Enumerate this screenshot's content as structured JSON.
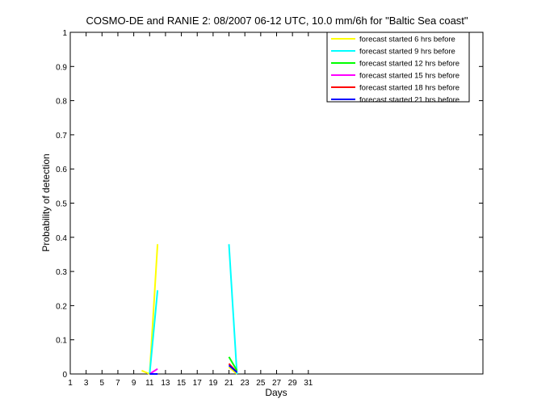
{
  "chart_data": {
    "type": "line",
    "title": "COSMO-DE and RANIE 2: 08/2007 06-12 UTC, 10.0 mm/6h for \"Baltic Sea coast\"",
    "xlabel": "Days",
    "ylabel": "Probability of detection",
    "xlim": [
      1,
      53
    ],
    "ylim": [
      0,
      1
    ],
    "xticks": [
      1,
      3,
      5,
      7,
      9,
      11,
      13,
      15,
      17,
      19,
      21,
      23,
      25,
      27,
      29,
      31
    ],
    "xtick_labels": [
      "1",
      "3",
      "5",
      "7",
      "9",
      "11",
      "13",
      "15",
      "17",
      "19",
      "21",
      "23",
      "25",
      "27",
      "29",
      "31"
    ],
    "yticks": [
      0,
      0.1,
      0.2,
      0.3,
      0.4,
      0.5,
      0.6,
      0.7,
      0.8,
      0.9,
      1
    ],
    "ytick_labels": [
      "0",
      "0.1",
      "0.2",
      "0.3",
      "0.4",
      "0.5",
      "0.6",
      "0.7",
      "0.8",
      "0.9",
      "1"
    ],
    "grid": false,
    "legend_position": "top-right",
    "series": [
      {
        "name": "forecast started 6 hrs before",
        "color": "#ffff00",
        "segments": [
          [
            [
              10,
              0.01
            ],
            [
              11,
              0.0
            ],
            [
              12,
              0.38
            ]
          ],
          [
            [
              21,
              0.02
            ],
            [
              22,
              0.0
            ]
          ]
        ]
      },
      {
        "name": "forecast started 9 hrs before",
        "color": "#00ffff",
        "segments": [
          [
            [
              11,
              0.0
            ],
            [
              12,
              0.245
            ]
          ],
          [
            [
              21,
              0.38
            ],
            [
              22,
              0.0
            ]
          ]
        ]
      },
      {
        "name": "forecast started 12 hrs before",
        "color": "#00ff00",
        "segments": [
          [
            [
              21,
              0.05
            ],
            [
              22,
              0.01
            ]
          ]
        ]
      },
      {
        "name": "forecast started 15 hrs before",
        "color": "#ff00ff",
        "segments": [
          [
            [
              11,
              0.0
            ],
            [
              12,
              0.015
            ]
          ]
        ]
      },
      {
        "name": "forecast started 18 hrs before",
        "color": "#ff0000",
        "segments": [
          [
            [
              21,
              0.03
            ],
            [
              22,
              0.005
            ]
          ]
        ]
      },
      {
        "name": "forecast started 21 hrs before",
        "color": "#0000ff",
        "segments": [
          [
            [
              11,
              0.0
            ],
            [
              12,
              0.0
            ]
          ],
          [
            [
              21,
              0.025
            ],
            [
              22,
              0.005
            ]
          ]
        ]
      }
    ]
  }
}
